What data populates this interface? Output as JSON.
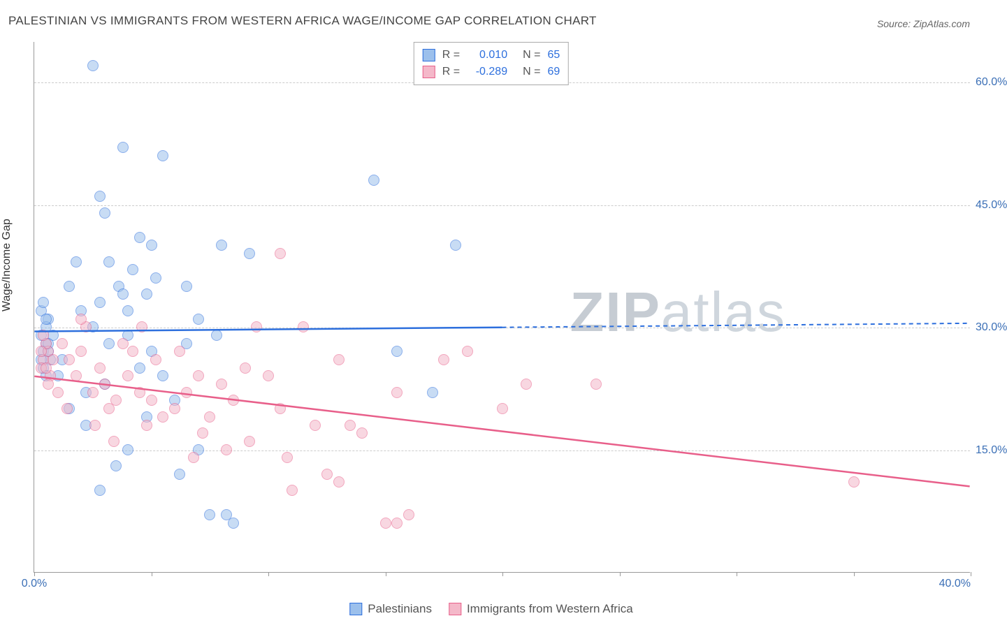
{
  "title": "PALESTINIAN VS IMMIGRANTS FROM WESTERN AFRICA WAGE/INCOME GAP CORRELATION CHART",
  "source": "Source: ZipAtlas.com",
  "watermark_bold": "ZIP",
  "watermark_light": "atlas",
  "ylabel": "Wage/Income Gap",
  "chart": {
    "type": "scatter",
    "xlim": [
      0,
      40
    ],
    "ylim": [
      0,
      65
    ],
    "background_color": "#ffffff",
    "grid_color": "#cccccc",
    "axis_color": "#999999",
    "marker_size": 16,
    "marker_opacity": 0.55,
    "yticks": [
      15,
      30,
      45,
      60
    ],
    "ytick_labels": [
      "15.0%",
      "30.0%",
      "45.0%",
      "60.0%"
    ],
    "ytick_color": "#3b6fb6",
    "xticks_minor": [
      0,
      5,
      10,
      15,
      20,
      25,
      30,
      35,
      40
    ],
    "xtick0_label": "0.0%",
    "xtick0_color": "#3b6fb6",
    "xtick_end_label": "40.0%",
    "xtick_end_color": "#3b6fb6"
  },
  "series": [
    {
      "name": "Palestinians",
      "stroke": "#2d6fdd",
      "fill": "#9cc0ec",
      "R": "0.010",
      "N": "65",
      "trend": {
        "y_at_x0": 29.5,
        "y_at_x40": 30.5,
        "solid_until_x": 20
      },
      "points": [
        [
          0.5,
          28
        ],
        [
          0.4,
          27
        ],
        [
          0.6,
          31
        ],
        [
          0.3,
          29
        ],
        [
          0.7,
          26
        ],
        [
          0.5,
          30
        ],
        [
          0.4,
          25
        ],
        [
          0.6,
          27
        ],
        [
          0.3,
          32
        ],
        [
          0.5,
          24
        ],
        [
          0.8,
          29
        ],
        [
          0.4,
          33
        ],
        [
          0.6,
          28
        ],
        [
          0.3,
          26
        ],
        [
          0.5,
          31
        ],
        [
          2.5,
          62
        ],
        [
          3.8,
          52
        ],
        [
          2.8,
          46
        ],
        [
          3.0,
          44
        ],
        [
          5.5,
          51
        ],
        [
          3.2,
          38
        ],
        [
          4.5,
          41
        ],
        [
          5.0,
          40
        ],
        [
          4.2,
          37
        ],
        [
          3.6,
          35
        ],
        [
          3.8,
          34
        ],
        [
          4.8,
          34
        ],
        [
          5.2,
          36
        ],
        [
          4.0,
          32
        ],
        [
          2.8,
          33
        ],
        [
          8.0,
          40
        ],
        [
          9.2,
          39
        ],
        [
          6.5,
          35
        ],
        [
          7.0,
          31
        ],
        [
          4.0,
          29
        ],
        [
          3.2,
          28
        ],
        [
          2.5,
          30
        ],
        [
          4.5,
          25
        ],
        [
          3.0,
          23
        ],
        [
          2.2,
          22
        ],
        [
          5.5,
          24
        ],
        [
          6.0,
          21
        ],
        [
          4.8,
          19
        ],
        [
          4.0,
          15
        ],
        [
          3.5,
          13
        ],
        [
          2.8,
          10
        ],
        [
          7.0,
          15
        ],
        [
          6.2,
          12
        ],
        [
          7.5,
          7
        ],
        [
          8.2,
          7
        ],
        [
          8.5,
          6
        ],
        [
          14.5,
          48
        ],
        [
          18.0,
          40
        ],
        [
          15.5,
          27
        ],
        [
          17.0,
          22
        ],
        [
          5.0,
          27
        ],
        [
          6.5,
          28
        ],
        [
          7.8,
          29
        ],
        [
          1.5,
          35
        ],
        [
          1.8,
          38
        ],
        [
          2.0,
          32
        ],
        [
          1.2,
          26
        ],
        [
          1.0,
          24
        ],
        [
          1.5,
          20
        ],
        [
          2.2,
          18
        ]
      ]
    },
    {
      "name": "Immigrants from Western Africa",
      "stroke": "#e85f8a",
      "fill": "#f4b8c9",
      "R": "-0.289",
      "N": "69",
      "trend": {
        "y_at_x0": 24.0,
        "y_at_x40": 10.5,
        "solid_until_x": 40
      },
      "points": [
        [
          0.4,
          26
        ],
        [
          0.6,
          27
        ],
        [
          0.3,
          25
        ],
        [
          0.5,
          28
        ],
        [
          0.7,
          24
        ],
        [
          0.4,
          29
        ],
        [
          0.6,
          23
        ],
        [
          0.3,
          27
        ],
        [
          0.5,
          25
        ],
        [
          0.8,
          26
        ],
        [
          1.2,
          28
        ],
        [
          1.5,
          26
        ],
        [
          1.8,
          24
        ],
        [
          2.0,
          27
        ],
        [
          2.5,
          22
        ],
        [
          2.8,
          25
        ],
        [
          3.0,
          23
        ],
        [
          3.5,
          21
        ],
        [
          4.0,
          24
        ],
        [
          3.2,
          20
        ],
        [
          4.5,
          22
        ],
        [
          5.0,
          21
        ],
        [
          5.5,
          19
        ],
        [
          4.8,
          18
        ],
        [
          6.0,
          20
        ],
        [
          6.5,
          22
        ],
        [
          7.0,
          24
        ],
        [
          7.5,
          19
        ],
        [
          8.0,
          23
        ],
        [
          8.5,
          21
        ],
        [
          9.0,
          25
        ],
        [
          9.5,
          30
        ],
        [
          10.0,
          24
        ],
        [
          10.5,
          20
        ],
        [
          7.2,
          17
        ],
        [
          8.2,
          15
        ],
        [
          6.8,
          14
        ],
        [
          9.2,
          16
        ],
        [
          10.8,
          14
        ],
        [
          12.0,
          18
        ],
        [
          11.5,
          30
        ],
        [
          13.0,
          26
        ],
        [
          13.5,
          18
        ],
        [
          14.0,
          17
        ],
        [
          12.5,
          12
        ],
        [
          13.0,
          11
        ],
        [
          11.0,
          10
        ],
        [
          15.0,
          6
        ],
        [
          15.5,
          6
        ],
        [
          16.0,
          7
        ],
        [
          10.5,
          39
        ],
        [
          18.5,
          27
        ],
        [
          21.0,
          23
        ],
        [
          24.0,
          23
        ],
        [
          15.5,
          22
        ],
        [
          17.5,
          26
        ],
        [
          20.0,
          20
        ],
        [
          35.0,
          11
        ],
        [
          3.8,
          28
        ],
        [
          4.2,
          27
        ],
        [
          2.2,
          30
        ],
        [
          1.0,
          22
        ],
        [
          1.4,
          20
        ],
        [
          2.6,
          18
        ],
        [
          3.4,
          16
        ],
        [
          5.2,
          26
        ],
        [
          6.2,
          27
        ],
        [
          4.6,
          30
        ],
        [
          2.0,
          31
        ]
      ]
    }
  ],
  "legend_top": {
    "r_label": "R  =",
    "n_label": "N  ="
  },
  "legend_bottom": {
    "items": [
      "Palestinians",
      "Immigrants from Western Africa"
    ]
  }
}
